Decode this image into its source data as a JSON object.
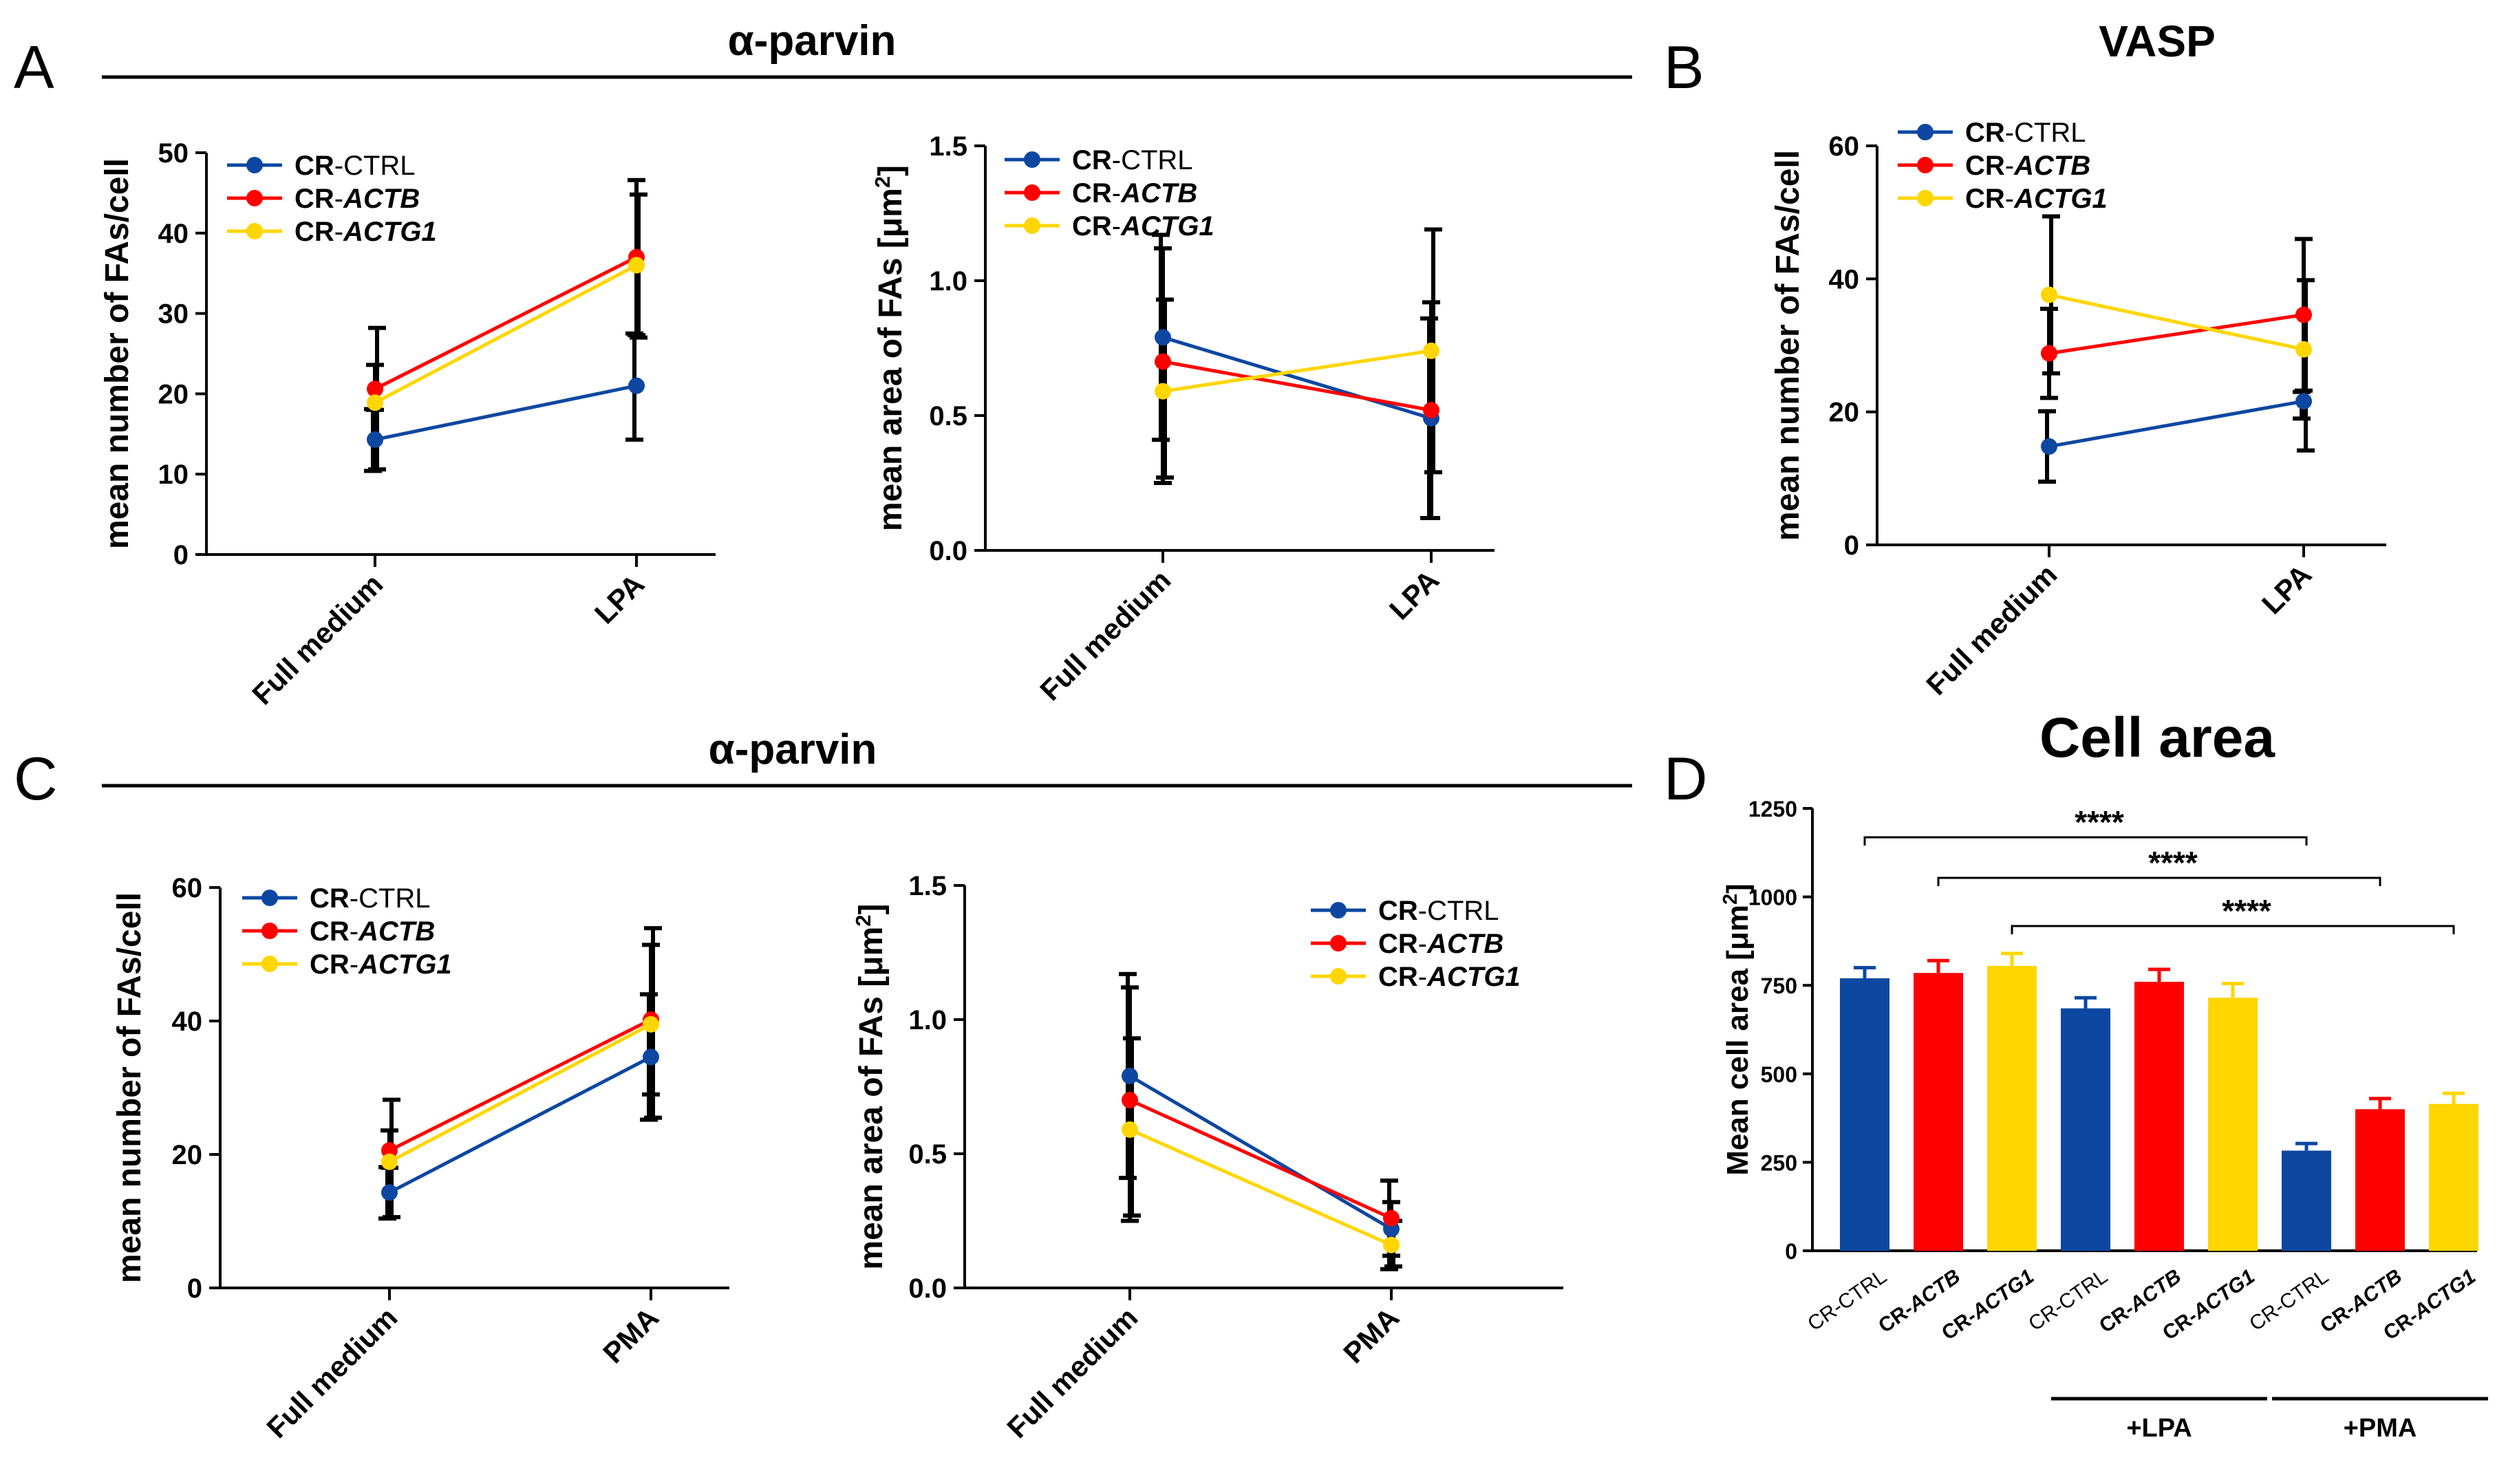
{
  "panels": {
    "A": {
      "letter": "A",
      "title": "α-parvin"
    },
    "B": {
      "letter": "B",
      "title": "VASP"
    },
    "C": {
      "letter": "C",
      "title": "α-parvin"
    },
    "D": {
      "letter": "D",
      "title": "Cell area"
    }
  },
  "colors": {
    "ctrl": "#0d47a1",
    "actb": "#ff0000",
    "actg1": "#ffd600"
  },
  "legend_series": [
    {
      "key": "ctrl",
      "prefix": "CR",
      "suffix": "-CTRL"
    },
    {
      "key": "actb",
      "prefix": "CR",
      "suffix": "-ACTB"
    },
    {
      "key": "actg1",
      "prefix": "CR",
      "suffix": "-ACTG1"
    }
  ],
  "chart_data": [
    {
      "id": "A1",
      "type": "line",
      "title": "α-parvin",
      "ylabel": "mean number of FAs/cell",
      "xlabel": "",
      "categories": [
        "Full medium",
        "LPA"
      ],
      "ylim": [
        0,
        50
      ],
      "yticks": [
        0,
        10,
        20,
        30,
        40,
        50
      ],
      "ytick_labels": [
        "0",
        "10",
        "20",
        "30",
        "40",
        "50"
      ],
      "series": [
        {
          "name": "CR-CTRL",
          "key": "ctrl",
          "values": [
            14.3,
            21.0
          ],
          "err": [
            [
              10.4,
              18.1
            ],
            [
              14.3,
              27.5
            ]
          ]
        },
        {
          "name": "CR-ACTB",
          "key": "actb",
          "values": [
            20.6,
            37.0
          ],
          "err": [
            [
              18.0,
              23.6
            ],
            [
              27.3,
              46.6
            ]
          ]
        },
        {
          "name": "CR-ACTG1",
          "key": "actg1",
          "values": [
            18.9,
            36.0
          ],
          "err": [
            [
              10.6,
              28.2
            ],
            [
              27.0,
              44.8
            ]
          ]
        }
      ]
    },
    {
      "id": "A2",
      "type": "line",
      "title": "α-parvin",
      "ylabel": "mean area of FAs [μm²]",
      "xlabel": "",
      "categories": [
        "Full medium",
        "LPA"
      ],
      "ylim": [
        0,
        1.5
      ],
      "yticks": [
        0,
        0.5,
        1.0,
        1.5
      ],
      "ytick_labels": [
        "0.0",
        "0.5",
        "1.0",
        "1.5"
      ],
      "series": [
        {
          "name": "CR-CTRL",
          "key": "ctrl",
          "values": [
            0.79,
            0.49
          ],
          "err": [
            [
              0.41,
              1.17
            ],
            [
              0.12,
              0.86
            ]
          ]
        },
        {
          "name": "CR-ACTB",
          "key": "actb",
          "values": [
            0.7,
            0.52
          ],
          "err": [
            [
              0.25,
              1.12
            ],
            [
              0.12,
              0.92
            ]
          ]
        },
        {
          "name": "CR-ACTG1",
          "key": "actg1",
          "values": [
            0.59,
            0.74
          ],
          "err": [
            [
              0.27,
              0.93
            ],
            [
              0.29,
              1.19
            ]
          ]
        }
      ]
    },
    {
      "id": "B",
      "type": "line",
      "title": "VASP",
      "ylabel": "mean number of FAs/cell",
      "xlabel": "",
      "categories": [
        "Full medium",
        "LPA"
      ],
      "ylim": [
        0,
        60
      ],
      "yticks": [
        0,
        20,
        40,
        60
      ],
      "ytick_labels": [
        "0",
        "20",
        "40",
        "60"
      ],
      "series": [
        {
          "name": "CR-CTRL",
          "key": "ctrl",
          "values": [
            14.8,
            21.6
          ],
          "err": [
            [
              9.5,
              20.1
            ],
            [
              19.0,
              23.0
            ]
          ]
        },
        {
          "name": "CR-ACTB",
          "key": "actb",
          "values": [
            28.8,
            34.6
          ],
          "err": [
            [
              22.1,
              35.5
            ],
            [
              23.2,
              46.0
            ]
          ]
        },
        {
          "name": "CR-ACTG1",
          "key": "actg1",
          "values": [
            37.6,
            29.4
          ],
          "err": [
            [
              25.8,
              49.4
            ],
            [
              14.2,
              39.8
            ]
          ]
        }
      ]
    },
    {
      "id": "C1",
      "type": "line",
      "title": "α-parvin",
      "ylabel": "mean number of FAs/cell",
      "xlabel": "",
      "categories": [
        "Full medium",
        "PMA"
      ],
      "ylim": [
        0,
        60
      ],
      "yticks": [
        0,
        20,
        40,
        60
      ],
      "ytick_labels": [
        "0",
        "20",
        "40",
        "60"
      ],
      "series": [
        {
          "name": "CR-CTRL",
          "key": "ctrl",
          "values": [
            14.3,
            34.6
          ],
          "err": [
            [
              10.4,
              18.1
            ],
            [
              25.2,
              44.0
            ]
          ]
        },
        {
          "name": "CR-ACTB",
          "key": "actb",
          "values": [
            20.6,
            40.2
          ],
          "err": [
            [
              18.0,
              23.6
            ],
            [
              29.0,
              51.4
            ]
          ]
        },
        {
          "name": "CR-ACTG1",
          "key": "actg1",
          "values": [
            18.9,
            39.5
          ],
          "err": [
            [
              10.6,
              28.2
            ],
            [
              25.5,
              53.9
            ]
          ]
        }
      ]
    },
    {
      "id": "C2",
      "type": "line",
      "title": "α-parvin",
      "ylabel": "mean area of FAs [μm²]",
      "xlabel": "",
      "categories": [
        "Full medium",
        "PMA"
      ],
      "ylim": [
        0,
        1.5
      ],
      "yticks": [
        0,
        0.5,
        1.0,
        1.5
      ],
      "ytick_labels": [
        "0.0",
        "0.5",
        "1.0",
        "1.5"
      ],
      "series": [
        {
          "name": "CR-CTRL",
          "key": "ctrl",
          "values": [
            0.79,
            0.22
          ],
          "err": [
            [
              0.41,
              1.17
            ],
            [
              0.07,
              0.4
            ]
          ]
        },
        {
          "name": "CR-ACTB",
          "key": "actb",
          "values": [
            0.7,
            0.26
          ],
          "err": [
            [
              0.25,
              1.12
            ],
            [
              0.12,
              0.32
            ]
          ]
        },
        {
          "name": "CR-ACTG1",
          "key": "actg1",
          "values": [
            0.59,
            0.16
          ],
          "err": [
            [
              0.27,
              0.93
            ],
            [
              0.08,
              0.25
            ]
          ]
        }
      ]
    },
    {
      "id": "D",
      "type": "bar",
      "title": "Cell area",
      "ylabel": "Mean cell area [μm²]",
      "xlabel": "",
      "ylim": [
        0,
        1250
      ],
      "yticks": [
        0,
        250,
        500,
        750,
        1000,
        1250
      ],
      "ytick_labels": [
        "0",
        "250",
        "500",
        "750",
        "1000",
        "1250"
      ],
      "categories": [
        "CR-CTRL",
        "CR-ACTB",
        "CR-ACTG1",
        "CR-CTRL",
        "CR-ACTB",
        "CR-ACTG1",
        "CR-CTRL",
        "CR-ACTB",
        "CR-ACTG1"
      ],
      "bars": [
        {
          "prefix": "CR-",
          "name": "CTRL",
          "key": "ctrl",
          "value": 770,
          "sem": 30
        },
        {
          "prefix": "CR-",
          "name": "ACTB",
          "key": "actb",
          "value": 785,
          "sem": 35
        },
        {
          "prefix": "CR-",
          "name": "ACTG1",
          "key": "actg1",
          "value": 805,
          "sem": 35
        },
        {
          "prefix": "CR-",
          "name": "CTRL",
          "key": "ctrl",
          "value": 685,
          "sem": 30
        },
        {
          "prefix": "CR-",
          "name": "ACTB",
          "key": "actb",
          "value": 760,
          "sem": 35
        },
        {
          "prefix": "CR-",
          "name": "ACTG1",
          "key": "actg1",
          "value": 715,
          "sem": 40
        },
        {
          "prefix": "CR-",
          "name": "CTRL",
          "key": "ctrl",
          "value": 283,
          "sem": 20
        },
        {
          "prefix": "CR-",
          "name": "ACTB",
          "key": "actb",
          "value": 400,
          "sem": 30
        },
        {
          "prefix": "CR-",
          "name": "ACTG1",
          "key": "actg1",
          "value": 415,
          "sem": 30
        }
      ],
      "groups": [
        {
          "label": "+LPA",
          "from": 3,
          "to": 5
        },
        {
          "label": "+PMA",
          "from": 6,
          "to": 8
        }
      ],
      "significance": [
        {
          "from": 0,
          "to": 6,
          "label": "****"
        },
        {
          "from": 1,
          "to": 7,
          "label": "****"
        },
        {
          "from": 2,
          "to": 8,
          "label": "****"
        }
      ]
    }
  ]
}
